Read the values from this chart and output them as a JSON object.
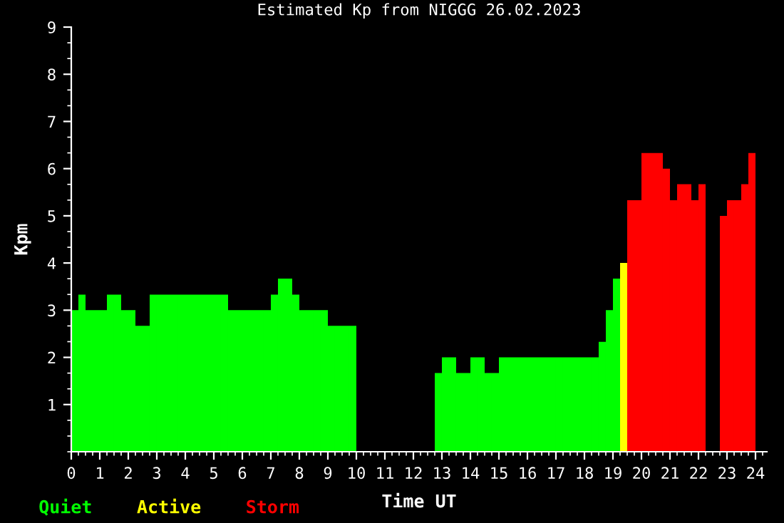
{
  "chart_data": {
    "type": "histogram",
    "title": "Estimated Kp from NIGGG 26.02.2023",
    "xlabel": "Time UT",
    "ylabel": "Kpm",
    "bins": [
      0,
      0.25,
      0.5,
      0.75,
      1,
      1.25,
      1.5,
      1.75,
      2,
      2.25,
      2.5,
      2.75,
      3,
      3.25,
      3.5,
      3.75,
      4,
      4.25,
      4.5,
      4.75,
      5,
      5.25,
      5.5,
      5.75,
      6,
      6.25,
      6.5,
      6.75,
      7,
      7.25,
      7.5,
      7.75,
      8,
      8.25,
      8.5,
      8.75,
      9,
      9.25,
      9.5,
      9.75,
      10,
      10.25,
      10.5,
      10.75,
      11,
      11.25,
      11.5,
      11.75,
      12,
      12.25,
      12.5,
      12.75,
      13,
      13.25,
      13.5,
      13.75,
      14,
      14.25,
      14.5,
      14.75,
      15,
      15.25,
      15.5,
      15.75,
      16,
      16.25,
      16.5,
      16.75,
      17,
      17.25,
      17.5,
      17.75,
      18,
      18.25,
      18.5,
      18.75,
      19,
      19.25,
      19.5,
      19.75,
      20,
      20.25,
      20.5,
      20.75,
      21,
      21.25,
      21.5,
      21.75,
      22,
      22.25,
      22.5,
      22.75,
      23,
      23.25,
      23.5,
      23.75,
      24
    ],
    "series": [
      {
        "name": "Quiet",
        "color": "#00ff00",
        "values": [
          3,
          3.33,
          3,
          3,
          3,
          3.33,
          3.33,
          3,
          3,
          2.67,
          2.67,
          3.33,
          3.33,
          3.33,
          3.33,
          3.33,
          3.33,
          3.33,
          3.33,
          3.33,
          3.33,
          3.33,
          3,
          3,
          3,
          3,
          3,
          3,
          3.33,
          3.67,
          3.67,
          3.33,
          3,
          3,
          3,
          3,
          2.67,
          2.67,
          2.67,
          2.67,
          null,
          null,
          null,
          null,
          null,
          null,
          null,
          null,
          null,
          null,
          null,
          1.67,
          2,
          2,
          1.67,
          1.67,
          2,
          2,
          1.67,
          1.67,
          2,
          2,
          2,
          2,
          2,
          2,
          2,
          2,
          2,
          2,
          2,
          2,
          2,
          2,
          2.33,
          3,
          3.67,
          null,
          null,
          null,
          null,
          null,
          null,
          null,
          null,
          null,
          null,
          null,
          null,
          null,
          null,
          null,
          null,
          null,
          null,
          null
        ]
      },
      {
        "name": "Active",
        "color": "#ffff00",
        "values": [
          null,
          null,
          null,
          null,
          null,
          null,
          null,
          null,
          null,
          null,
          null,
          null,
          null,
          null,
          null,
          null,
          null,
          null,
          null,
          null,
          null,
          null,
          null,
          null,
          null,
          null,
          null,
          null,
          null,
          null,
          null,
          null,
          null,
          null,
          null,
          null,
          null,
          null,
          null,
          null,
          null,
          null,
          null,
          null,
          null,
          null,
          null,
          null,
          null,
          null,
          null,
          null,
          null,
          null,
          null,
          null,
          null,
          null,
          null,
          null,
          null,
          null,
          null,
          null,
          null,
          null,
          null,
          null,
          null,
          null,
          null,
          null,
          null,
          null,
          null,
          null,
          null,
          4,
          null,
          null,
          null,
          null,
          null,
          null,
          null,
          null,
          null,
          null,
          null,
          null,
          null,
          null,
          null,
          null,
          null,
          null
        ]
      },
      {
        "name": "Storm",
        "color": "#ff0000",
        "values": [
          null,
          null,
          null,
          null,
          null,
          null,
          null,
          null,
          null,
          null,
          null,
          null,
          null,
          null,
          null,
          null,
          null,
          null,
          null,
          null,
          null,
          null,
          null,
          null,
          null,
          null,
          null,
          null,
          null,
          null,
          null,
          null,
          null,
          null,
          null,
          null,
          null,
          null,
          null,
          null,
          null,
          null,
          null,
          null,
          null,
          null,
          null,
          null,
          null,
          null,
          null,
          null,
          null,
          null,
          null,
          null,
          null,
          null,
          null,
          null,
          null,
          null,
          null,
          null,
          null,
          null,
          null,
          null,
          null,
          null,
          null,
          null,
          null,
          null,
          null,
          null,
          null,
          null,
          5.33,
          5.33,
          6.33,
          6.33,
          6.33,
          6,
          5.33,
          5.67,
          5.67,
          5.33,
          5.67,
          null,
          null,
          5,
          5.33,
          5.33,
          5.67,
          6.33
        ]
      }
    ],
    "xlim": [
      0,
      24.4
    ],
    "ylim": [
      0,
      9
    ],
    "xticks": [
      0,
      1,
      2,
      3,
      4,
      5,
      6,
      7,
      8,
      9,
      10,
      11,
      12,
      13,
      14,
      15,
      16,
      17,
      18,
      19,
      20,
      21,
      22,
      23,
      24
    ],
    "yticks": [
      1,
      2,
      3,
      4,
      5,
      6,
      7,
      8,
      9
    ],
    "grid": false,
    "legend": "bottom left"
  }
}
